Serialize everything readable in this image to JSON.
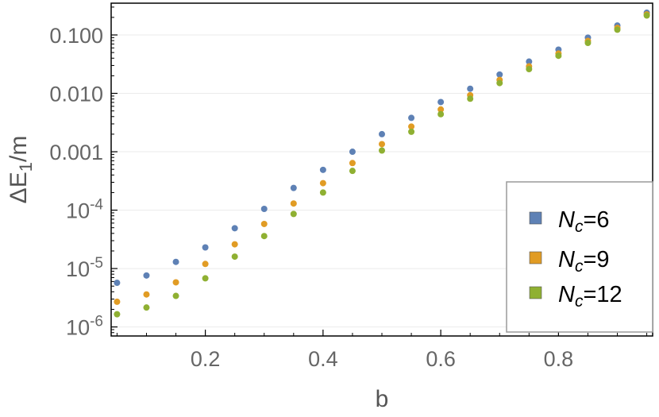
{
  "chart_data": {
    "type": "scatter",
    "xlabel": "b",
    "ylabel": "ΔE₁/m",
    "xlim": [
      0.04,
      0.96
    ],
    "ylim": [
      7e-07,
      0.35
    ],
    "y_scale": "log",
    "grid": "horizontal",
    "x_ticks": [
      0.2,
      0.4,
      0.6,
      0.8
    ],
    "x_tick_labels": [
      "0.2",
      "0.4",
      "0.6",
      "0.8"
    ],
    "y_ticks": [
      1e-06,
      1e-05,
      0.0001,
      0.001,
      0.01,
      0.1
    ],
    "y_tick_labels": [
      {
        "base": "10",
        "exp": "-6"
      },
      {
        "base": "10",
        "exp": "-5"
      },
      {
        "base": "10",
        "exp": "-4"
      },
      {
        "base": "0.001",
        "exp": ""
      },
      {
        "base": "0.010",
        "exp": ""
      },
      {
        "base": "0.100",
        "exp": ""
      }
    ],
    "legend_position": "bottom-right",
    "x": [
      0.05,
      0.1,
      0.15,
      0.2,
      0.25,
      0.3,
      0.35,
      0.4,
      0.45,
      0.5,
      0.55,
      0.6,
      0.65,
      0.7,
      0.75,
      0.8,
      0.85,
      0.9,
      0.95
    ],
    "series": [
      {
        "name": "N_c=6",
        "label_main": "N",
        "label_sub": "c",
        "label_value": "=6",
        "color": "#5e81b5",
        "values": [
          5.7e-06,
          7.6e-06,
          1.3e-05,
          2.3e-05,
          4.9e-05,
          0.000105,
          0.00024,
          0.00049,
          0.001,
          0.002,
          0.0038,
          0.0071,
          0.012,
          0.021,
          0.035,
          0.056,
          0.09,
          0.145,
          0.24
        ]
      },
      {
        "name": "N_c=9",
        "label_main": "N",
        "label_sub": "c",
        "label_value": "=9",
        "color": "#e19c24",
        "values": [
          2.7e-06,
          3.6e-06,
          5.8e-06,
          1.2e-05,
          2.6e-05,
          5.8e-05,
          0.00013,
          0.00029,
          0.00064,
          0.00135,
          0.0027,
          0.0053,
          0.0093,
          0.017,
          0.029,
          0.048,
          0.079,
          0.132,
          0.225
        ]
      },
      {
        "name": "N_c=12",
        "label_main": "N",
        "label_sub": "c",
        "label_value": "=12",
        "color": "#8fb032",
        "values": [
          1.65e-06,
          2.15e-06,
          3.4e-06,
          6.8e-06,
          1.6e-05,
          3.6e-05,
          8.6e-05,
          0.0002,
          0.00047,
          0.00105,
          0.0022,
          0.0044,
          0.0081,
          0.015,
          0.026,
          0.044,
          0.073,
          0.123,
          0.215
        ]
      }
    ]
  }
}
